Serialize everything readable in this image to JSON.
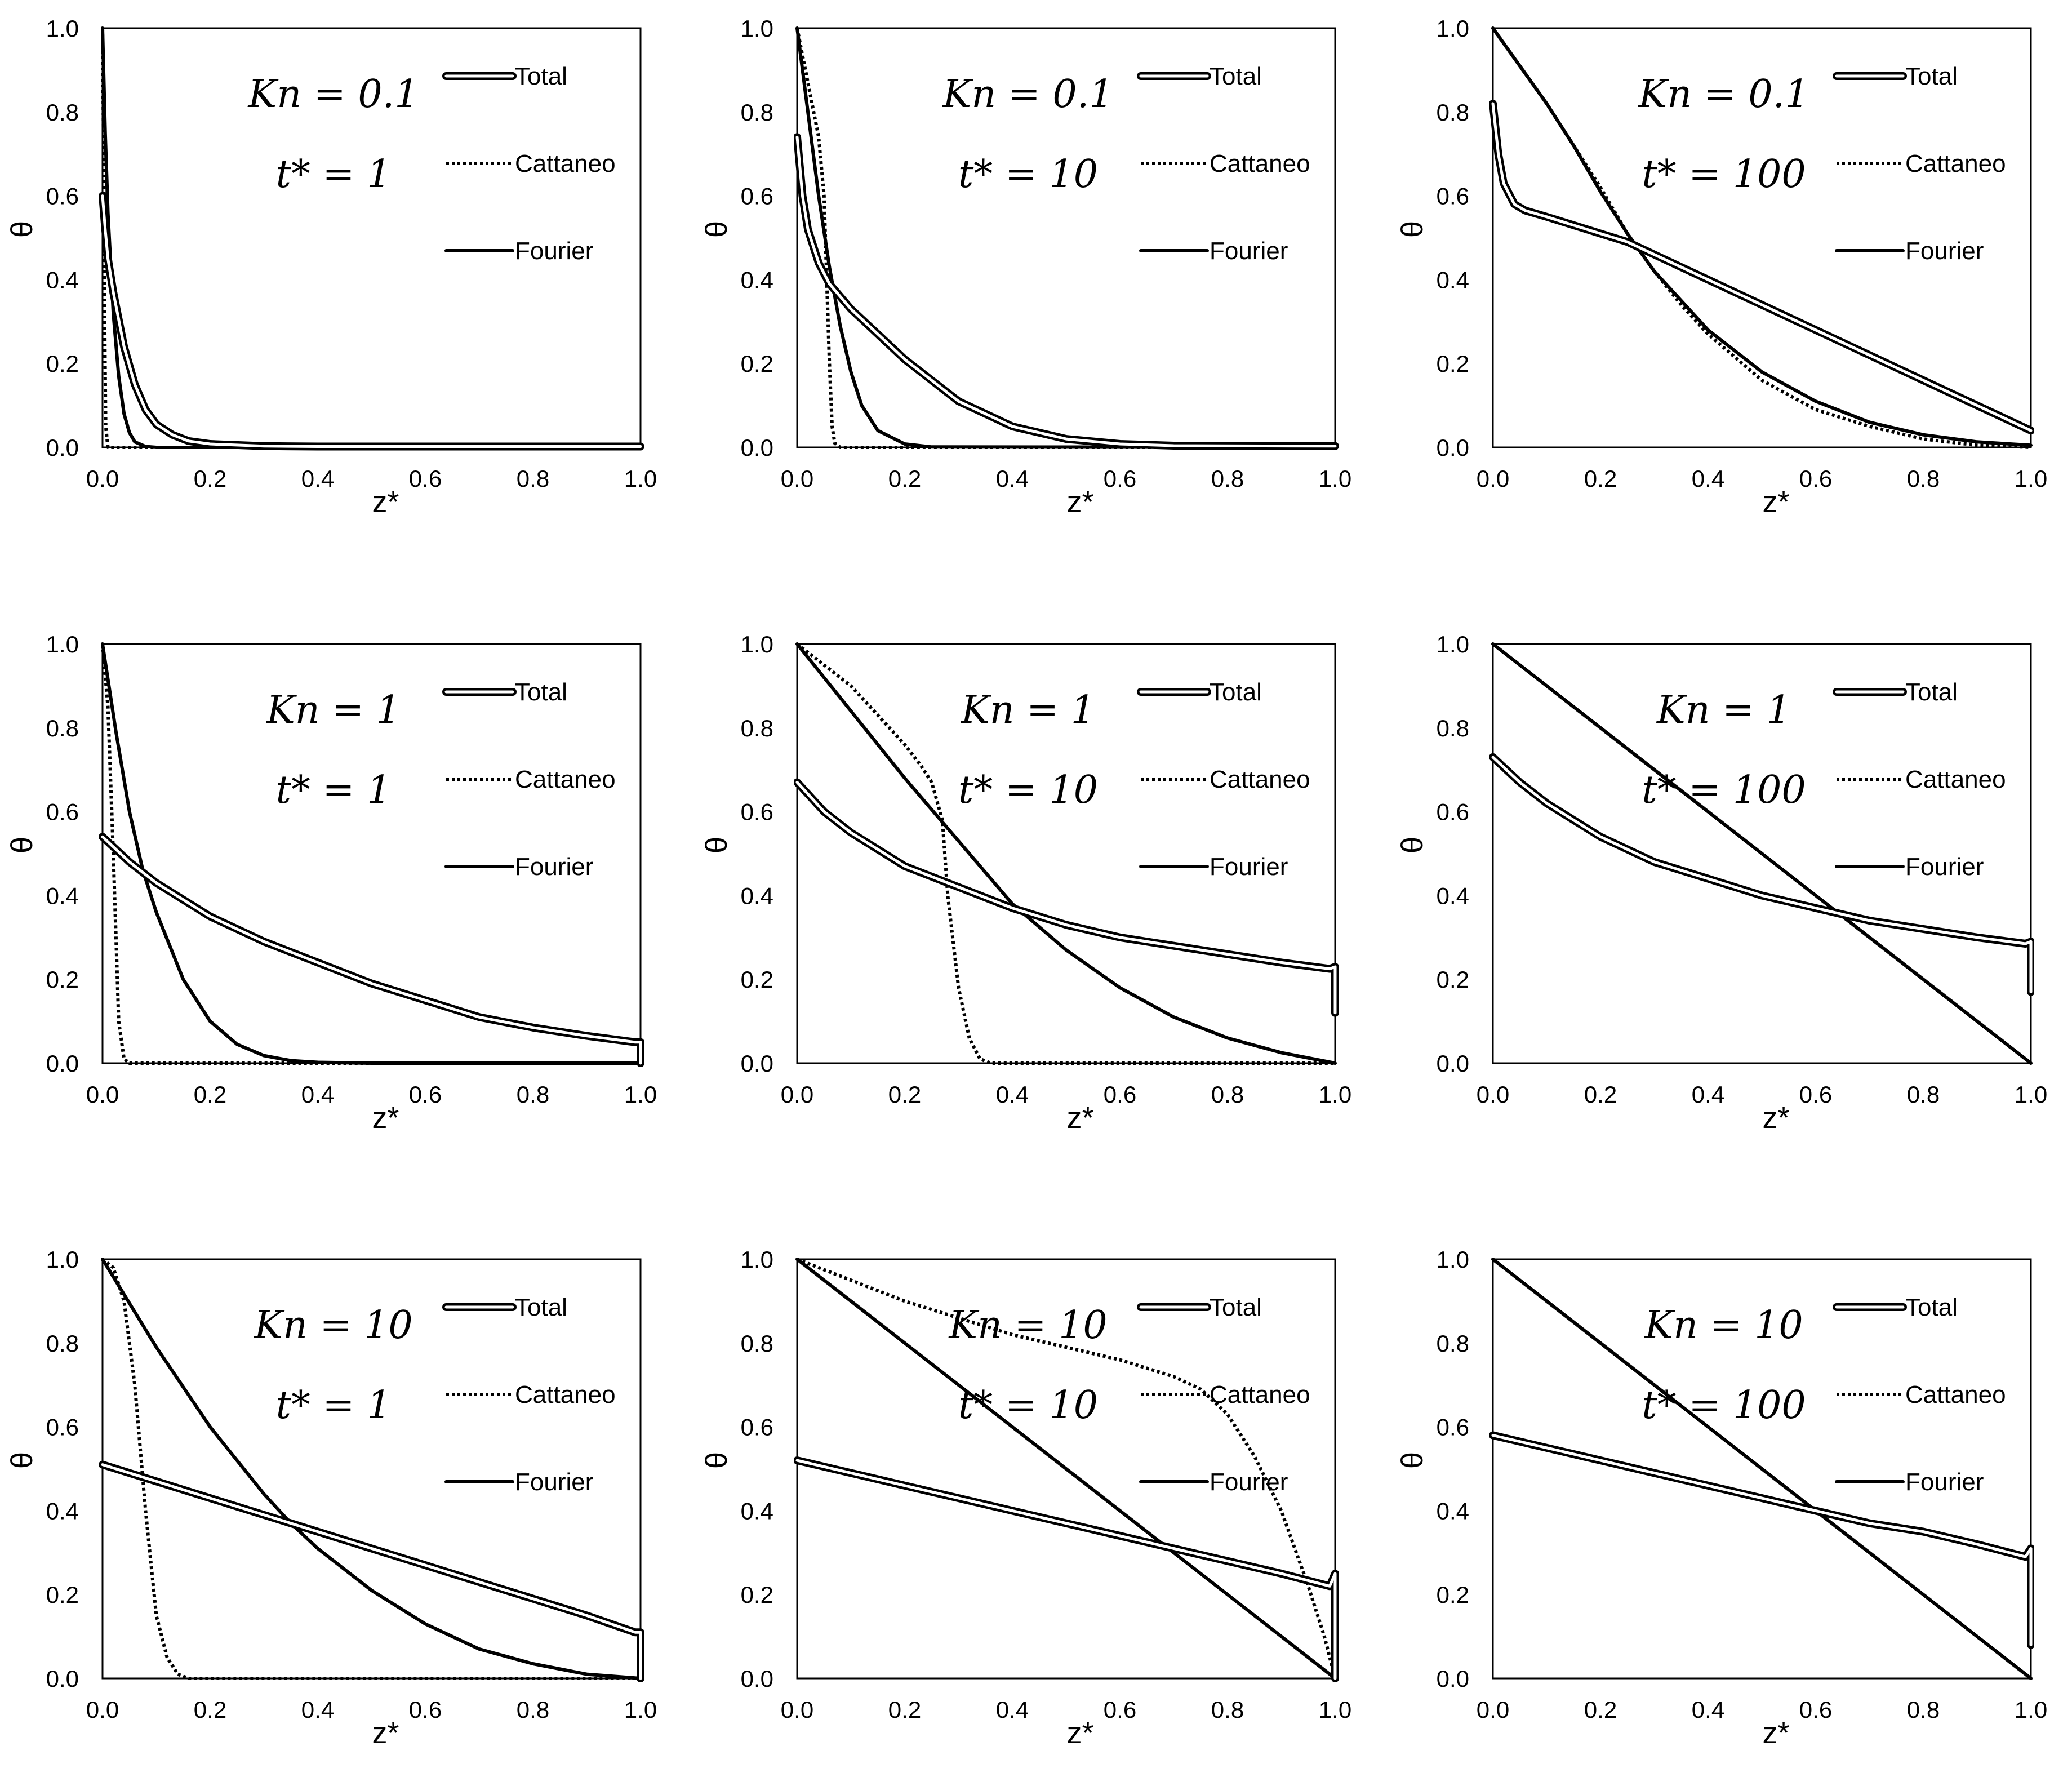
{
  "figure": {
    "legend_entries": [
      "Total",
      "Cattaneo",
      "Fourier"
    ],
    "style": {
      "line_color": "#000000",
      "background": "#ffffff"
    }
  },
  "chart_data": [
    {
      "type": "line",
      "kn_label": "Kn = 0.1",
      "t_label": "t* = 1",
      "xlabel": "z*",
      "ylabel": "θ",
      "xlim": [
        0,
        1
      ],
      "ylim": [
        0,
        1
      ],
      "xticks": [
        "0.0",
        "0.2",
        "0.4",
        "0.6",
        "0.8",
        "1.0"
      ],
      "yticks": [
        "0.0",
        "0.2",
        "0.4",
        "0.6",
        "0.8",
        "1.0"
      ],
      "series": [
        {
          "name": "Total",
          "x": [
            0,
            0.005,
            0.01,
            0.02,
            0.04,
            0.06,
            0.08,
            0.1,
            0.13,
            0.16,
            0.2,
            0.3,
            0.4,
            1.0
          ],
          "y": [
            0.6,
            0.52,
            0.45,
            0.37,
            0.24,
            0.15,
            0.09,
            0.055,
            0.03,
            0.015,
            0.008,
            0.003,
            0.002,
            0.002
          ]
        },
        {
          "name": "Cattaneo",
          "x": [
            0,
            0.002,
            0.004,
            0.006,
            0.01,
            1.0
          ],
          "y": [
            1.0,
            0.7,
            0.3,
            0.05,
            0,
            0
          ]
        },
        {
          "name": "Fourier",
          "x": [
            0,
            0.005,
            0.01,
            0.02,
            0.03,
            0.04,
            0.05,
            0.06,
            0.08,
            0.1,
            1.0
          ],
          "y": [
            1.0,
            0.75,
            0.56,
            0.32,
            0.17,
            0.08,
            0.035,
            0.013,
            0.002,
            0,
            0
          ]
        }
      ]
    },
    {
      "type": "line",
      "kn_label": "Kn = 0.1",
      "t_label": "t* = 10",
      "xlabel": "z*",
      "ylabel": "θ",
      "xlim": [
        0,
        1
      ],
      "ylim": [
        0,
        1
      ],
      "xticks": [
        "0.0",
        "0.2",
        "0.4",
        "0.6",
        "0.8",
        "1.0"
      ],
      "yticks": [
        "0.0",
        "0.2",
        "0.4",
        "0.6",
        "0.8",
        "1.0"
      ],
      "series": [
        {
          "name": "Total",
          "x": [
            0,
            0.01,
            0.02,
            0.04,
            0.06,
            0.1,
            0.15,
            0.2,
            0.3,
            0.4,
            0.5,
            0.6,
            0.7,
            1.0
          ],
          "y": [
            0.74,
            0.6,
            0.52,
            0.44,
            0.39,
            0.33,
            0.27,
            0.21,
            0.11,
            0.05,
            0.02,
            0.008,
            0.004,
            0.003
          ]
        },
        {
          "name": "Cattaneo",
          "x": [
            0,
            0.02,
            0.04,
            0.05,
            0.055,
            0.06,
            0.065,
            0.07,
            0.08,
            1.0
          ],
          "y": [
            1.0,
            0.87,
            0.74,
            0.6,
            0.4,
            0.2,
            0.05,
            0.01,
            0,
            0
          ]
        },
        {
          "name": "Fourier",
          "x": [
            0,
            0.02,
            0.04,
            0.06,
            0.08,
            0.1,
            0.12,
            0.15,
            0.2,
            0.25,
            1.0
          ],
          "y": [
            1.0,
            0.8,
            0.6,
            0.43,
            0.29,
            0.18,
            0.1,
            0.04,
            0.008,
            0.001,
            0
          ]
        }
      ]
    },
    {
      "type": "line",
      "kn_label": "Kn = 0.1",
      "t_label": "t* = 100",
      "xlabel": "z*",
      "ylabel": "θ",
      "xlim": [
        0,
        1
      ],
      "ylim": [
        0,
        1
      ],
      "xticks": [
        "0.0",
        "0.2",
        "0.4",
        "0.6",
        "0.8",
        "1.0"
      ],
      "yticks": [
        "0.0",
        "0.2",
        "0.4",
        "0.6",
        "0.8",
        "1.0"
      ],
      "series": [
        {
          "name": "Total",
          "x": [
            0,
            0.01,
            0.02,
            0.04,
            0.06,
            0.1,
            0.15,
            0.2,
            0.25,
            0.3,
            0.4,
            0.5,
            0.6,
            0.7,
            0.8,
            0.9,
            1.0
          ],
          "y": [
            0.82,
            0.7,
            0.63,
            0.58,
            0.565,
            0.55,
            0.53,
            0.51,
            0.49,
            0.46,
            0.4,
            0.34,
            0.28,
            0.22,
            0.16,
            0.1,
            0.04
          ]
        },
        {
          "name": "Cattaneo",
          "x": [
            0,
            0.05,
            0.1,
            0.15,
            0.2,
            0.25,
            0.3,
            0.35,
            0.4,
            0.5,
            0.6,
            0.7,
            0.8,
            0.9,
            1.0
          ],
          "y": [
            1.0,
            0.91,
            0.82,
            0.72,
            0.62,
            0.51,
            0.42,
            0.34,
            0.27,
            0.16,
            0.09,
            0.05,
            0.02,
            0.005,
            0
          ]
        },
        {
          "name": "Fourier",
          "x": [
            0,
            0.05,
            0.1,
            0.15,
            0.2,
            0.25,
            0.3,
            0.35,
            0.4,
            0.5,
            0.6,
            0.7,
            0.8,
            0.9,
            1.0
          ],
          "y": [
            1.0,
            0.91,
            0.82,
            0.72,
            0.61,
            0.51,
            0.42,
            0.35,
            0.28,
            0.18,
            0.11,
            0.06,
            0.03,
            0.013,
            0.005
          ]
        }
      ]
    },
    {
      "type": "line",
      "kn_label": "Kn = 1",
      "t_label": "t* = 1",
      "xlabel": "z*",
      "ylabel": "θ",
      "xlim": [
        0,
        1
      ],
      "ylim": [
        0,
        1
      ],
      "xticks": [
        "0.0",
        "0.2",
        "0.4",
        "0.6",
        "0.8",
        "1.0"
      ],
      "yticks": [
        "0.0",
        "0.2",
        "0.4",
        "0.6",
        "0.8",
        "1.0"
      ],
      "series": [
        {
          "name": "Total",
          "x": [
            0,
            0.05,
            0.1,
            0.2,
            0.3,
            0.4,
            0.5,
            0.6,
            0.7,
            0.8,
            0.9,
            0.99,
            1.0,
            1.0
          ],
          "y": [
            0.54,
            0.48,
            0.43,
            0.35,
            0.29,
            0.24,
            0.19,
            0.15,
            0.11,
            0.085,
            0.065,
            0.05,
            0.05,
            0.0
          ]
        },
        {
          "name": "Cattaneo",
          "x": [
            0,
            0.01,
            0.02,
            0.03,
            0.04,
            0.05,
            1.0
          ],
          "y": [
            1.0,
            0.85,
            0.5,
            0.1,
            0.01,
            0,
            0
          ]
        },
        {
          "name": "Fourier",
          "x": [
            0,
            0.025,
            0.05,
            0.075,
            0.1,
            0.15,
            0.2,
            0.25,
            0.3,
            0.35,
            0.4,
            0.5,
            1.0
          ],
          "y": [
            1.0,
            0.79,
            0.6,
            0.46,
            0.36,
            0.2,
            0.1,
            0.045,
            0.018,
            0.006,
            0.002,
            0,
            0
          ]
        }
      ]
    },
    {
      "type": "line",
      "kn_label": "Kn = 1",
      "t_label": "t* = 10",
      "xlabel": "z*",
      "ylabel": "θ",
      "xlim": [
        0,
        1
      ],
      "ylim": [
        0,
        1
      ],
      "xticks": [
        "0.0",
        "0.2",
        "0.4",
        "0.6",
        "0.8",
        "1.0"
      ],
      "yticks": [
        "0.0",
        "0.2",
        "0.4",
        "0.6",
        "0.8",
        "1.0"
      ],
      "series": [
        {
          "name": "Total",
          "x": [
            0,
            0.05,
            0.1,
            0.2,
            0.3,
            0.4,
            0.5,
            0.6,
            0.7,
            0.8,
            0.9,
            0.99,
            1.0,
            1.0
          ],
          "y": [
            0.67,
            0.6,
            0.55,
            0.47,
            0.42,
            0.37,
            0.33,
            0.3,
            0.28,
            0.26,
            0.24,
            0.225,
            0.23,
            0.12
          ]
        },
        {
          "name": "Cattaneo",
          "x": [
            0,
            0.05,
            0.1,
            0.15,
            0.2,
            0.23,
            0.25,
            0.27,
            0.28,
            0.3,
            0.32,
            0.34,
            0.36,
            1.0
          ],
          "y": [
            1.0,
            0.95,
            0.9,
            0.83,
            0.76,
            0.71,
            0.67,
            0.58,
            0.4,
            0.18,
            0.06,
            0.01,
            0,
            0
          ]
        },
        {
          "name": "Fourier",
          "x": [
            0,
            0.1,
            0.2,
            0.3,
            0.4,
            0.5,
            0.6,
            0.7,
            0.8,
            0.9,
            1.0
          ],
          "y": [
            1.0,
            0.84,
            0.68,
            0.53,
            0.38,
            0.27,
            0.18,
            0.11,
            0.06,
            0.025,
            0.0
          ]
        }
      ]
    },
    {
      "type": "line",
      "kn_label": "Kn = 1",
      "t_label": "t* = 100",
      "xlabel": "z*",
      "ylabel": "θ",
      "xlim": [
        0,
        1
      ],
      "ylim": [
        0,
        1
      ],
      "xticks": [
        "0.0",
        "0.2",
        "0.4",
        "0.6",
        "0.8",
        "1.0"
      ],
      "yticks": [
        "0.0",
        "0.2",
        "0.4",
        "0.6",
        "0.8",
        "1.0"
      ],
      "series": [
        {
          "name": "Total",
          "x": [
            0,
            0.05,
            0.1,
            0.2,
            0.3,
            0.4,
            0.5,
            0.6,
            0.7,
            0.8,
            0.9,
            0.99,
            1.0,
            1.0
          ],
          "y": [
            0.73,
            0.67,
            0.62,
            0.54,
            0.48,
            0.44,
            0.4,
            0.37,
            0.34,
            0.32,
            0.3,
            0.285,
            0.29,
            0.17
          ]
        },
        {
          "name": "Cattaneo",
          "x": [
            0,
            1.0
          ],
          "y": [
            1.0,
            0.0
          ]
        },
        {
          "name": "Fourier",
          "x": [
            0,
            1.0
          ],
          "y": [
            1.0,
            0.0
          ]
        }
      ]
    },
    {
      "type": "line",
      "kn_label": "Kn = 10",
      "t_label": "t* = 1",
      "xlabel": "z*",
      "ylabel": "θ",
      "xlim": [
        0,
        1
      ],
      "ylim": [
        0,
        1
      ],
      "xticks": [
        "0.0",
        "0.2",
        "0.4",
        "0.6",
        "0.8",
        "1.0"
      ],
      "yticks": [
        "0.0",
        "0.2",
        "0.4",
        "0.6",
        "0.8",
        "1.0"
      ],
      "series": [
        {
          "name": "Total",
          "x": [
            0,
            0.1,
            0.2,
            0.3,
            0.4,
            0.5,
            0.6,
            0.7,
            0.8,
            0.9,
            0.99,
            1.0,
            1.0
          ],
          "y": [
            0.51,
            0.47,
            0.43,
            0.39,
            0.35,
            0.31,
            0.27,
            0.23,
            0.19,
            0.15,
            0.11,
            0.11,
            0.0
          ]
        },
        {
          "name": "Cattaneo",
          "x": [
            0,
            0.02,
            0.04,
            0.06,
            0.08,
            0.1,
            0.12,
            0.14,
            0.16,
            1.0
          ],
          "y": [
            1.0,
            0.98,
            0.9,
            0.7,
            0.4,
            0.15,
            0.05,
            0.01,
            0,
            0
          ]
        },
        {
          "name": "Fourier",
          "x": [
            0,
            0.1,
            0.2,
            0.3,
            0.35,
            0.4,
            0.5,
            0.6,
            0.7,
            0.8,
            0.9,
            1.0
          ],
          "y": [
            1.0,
            0.79,
            0.6,
            0.44,
            0.37,
            0.31,
            0.21,
            0.13,
            0.07,
            0.035,
            0.01,
            0.0
          ]
        }
      ]
    },
    {
      "type": "line",
      "kn_label": "Kn = 10",
      "t_label": "t* = 10",
      "xlabel": "z*",
      "ylabel": "θ",
      "xlim": [
        0,
        1
      ],
      "ylim": [
        0,
        1
      ],
      "xticks": [
        "0.0",
        "0.2",
        "0.4",
        "0.6",
        "0.8",
        "1.0"
      ],
      "yticks": [
        "0.0",
        "0.2",
        "0.4",
        "0.6",
        "0.8",
        "1.0"
      ],
      "series": [
        {
          "name": "Total",
          "x": [
            0,
            0.1,
            0.2,
            0.3,
            0.4,
            0.5,
            0.6,
            0.7,
            0.8,
            0.9,
            0.99,
            1.0,
            1.0
          ],
          "y": [
            0.52,
            0.49,
            0.46,
            0.43,
            0.4,
            0.37,
            0.34,
            0.31,
            0.28,
            0.25,
            0.22,
            0.25,
            0.0
          ]
        },
        {
          "name": "Cattaneo",
          "x": [
            0,
            0.1,
            0.2,
            0.3,
            0.4,
            0.5,
            0.6,
            0.7,
            0.75,
            0.8,
            0.85,
            0.9,
            0.95,
            0.98,
            1.0
          ],
          "y": [
            1.0,
            0.95,
            0.9,
            0.86,
            0.82,
            0.79,
            0.76,
            0.72,
            0.69,
            0.63,
            0.53,
            0.4,
            0.22,
            0.1,
            0.0
          ]
        },
        {
          "name": "Fourier",
          "x": [
            0,
            1.0
          ],
          "y": [
            1.0,
            0.0
          ]
        }
      ]
    },
    {
      "type": "line",
      "kn_label": "Kn = 10",
      "t_label": "t* = 100",
      "xlabel": "z*",
      "ylabel": "θ",
      "xlim": [
        0,
        1
      ],
      "ylim": [
        0,
        1
      ],
      "xticks": [
        "0.0",
        "0.2",
        "0.4",
        "0.6",
        "0.8",
        "1.0"
      ],
      "yticks": [
        "0.0",
        "0.2",
        "0.4",
        "0.6",
        "0.8",
        "1.0"
      ],
      "series": [
        {
          "name": "Total",
          "x": [
            0,
            0.1,
            0.2,
            0.3,
            0.4,
            0.5,
            0.6,
            0.7,
            0.8,
            0.9,
            0.99,
            1.0,
            1.0
          ],
          "y": [
            0.58,
            0.55,
            0.52,
            0.49,
            0.46,
            0.43,
            0.4,
            0.37,
            0.35,
            0.32,
            0.29,
            0.31,
            0.08
          ]
        },
        {
          "name": "Cattaneo",
          "x": [
            0,
            1.0
          ],
          "y": [
            1.0,
            0.0
          ]
        },
        {
          "name": "Fourier",
          "x": [
            0,
            1.0
          ],
          "y": [
            1.0,
            0.0
          ]
        }
      ]
    }
  ]
}
